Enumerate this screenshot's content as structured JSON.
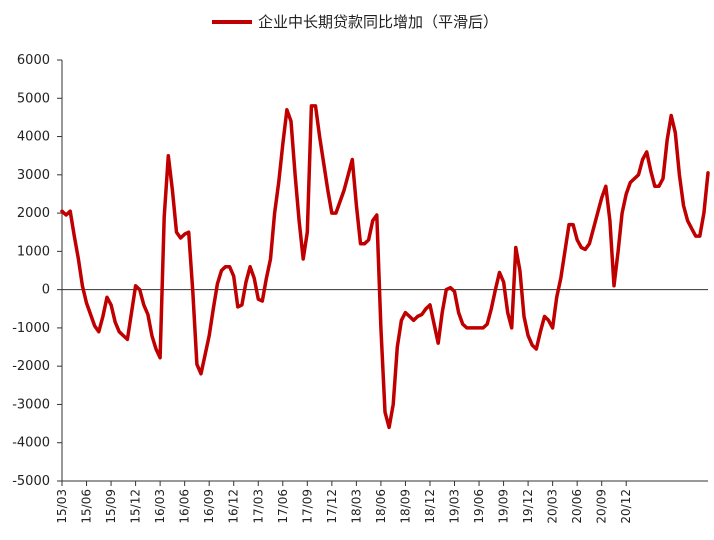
{
  "chart_data": {
    "type": "line",
    "title": "",
    "xlabel": "",
    "ylabel": "",
    "ylim": [
      -5000,
      6000
    ],
    "yticks": [
      6000,
      5000,
      4000,
      3000,
      2000,
      1000,
      0,
      -1000,
      -2000,
      -3000,
      -4000,
      -5000
    ],
    "grid": false,
    "legend": {
      "placement": "top-center"
    },
    "x_ticks": [
      "15/03",
      "15/06",
      "15/09",
      "15/12",
      "16/03",
      "16/06",
      "16/09",
      "16/12",
      "17/03",
      "17/06",
      "17/09",
      "17/12",
      "18/03",
      "18/06",
      "18/09",
      "18/12",
      "19/03",
      "19/06",
      "19/09",
      "19/12",
      "20/03",
      "20/06",
      "20/09",
      "20/12"
    ],
    "color": "#c00000",
    "series": [
      {
        "name": "企业中长期贷款同比增加（平滑后）",
        "x_start": "15/03",
        "x_step_months": 0.5,
        "values": [
          2050,
          1950,
          2050,
          1400,
          800,
          100,
          -350,
          -650,
          -950,
          -1100,
          -700,
          -200,
          -400,
          -850,
          -1100,
          -1200,
          -1300,
          -600,
          100,
          0,
          -400,
          -650,
          -1200,
          -1550,
          -1780,
          1900,
          3500,
          2600,
          1500,
          1350,
          1450,
          1500,
          -50,
          -1950,
          -2200,
          -1700,
          -1200,
          -500,
          150,
          500,
          600,
          600,
          350,
          -450,
          -400,
          200,
          600,
          300,
          -250,
          -300,
          300,
          800,
          2000,
          2800,
          3800,
          4700,
          4400,
          3000,
          1800,
          800,
          1500,
          4800,
          4800,
          4000,
          3300,
          2600,
          2000,
          2000,
          2300,
          2600,
          3000,
          3400,
          2200,
          1200,
          1200,
          1300,
          1800,
          1950,
          -1000,
          -3200,
          -3600,
          -3000,
          -1500,
          -800,
          -600,
          -700,
          -800,
          -700,
          -650,
          -500,
          -400,
          -900,
          -1400,
          -600,
          0,
          50,
          -50,
          -600,
          -900,
          -1000,
          -1000,
          -1000,
          -1000,
          -1000,
          -900,
          -500,
          0,
          450,
          200,
          -600,
          -1000,
          1100,
          500,
          -700,
          -1200,
          -1450,
          -1550,
          -1100,
          -700,
          -800,
          -1000,
          -200,
          300,
          1000,
          1700,
          1700,
          1300,
          1100,
          1050,
          1200,
          1600,
          2000,
          2400,
          2700,
          1800,
          100,
          1000,
          2000,
          2500,
          2800,
          2900,
          3000,
          3400,
          3600,
          3100,
          2700,
          2700,
          2900,
          3900,
          4550,
          4100,
          3000,
          2200,
          1800,
          1600,
          1400,
          1400,
          2000,
          3050
        ]
      }
    ]
  }
}
